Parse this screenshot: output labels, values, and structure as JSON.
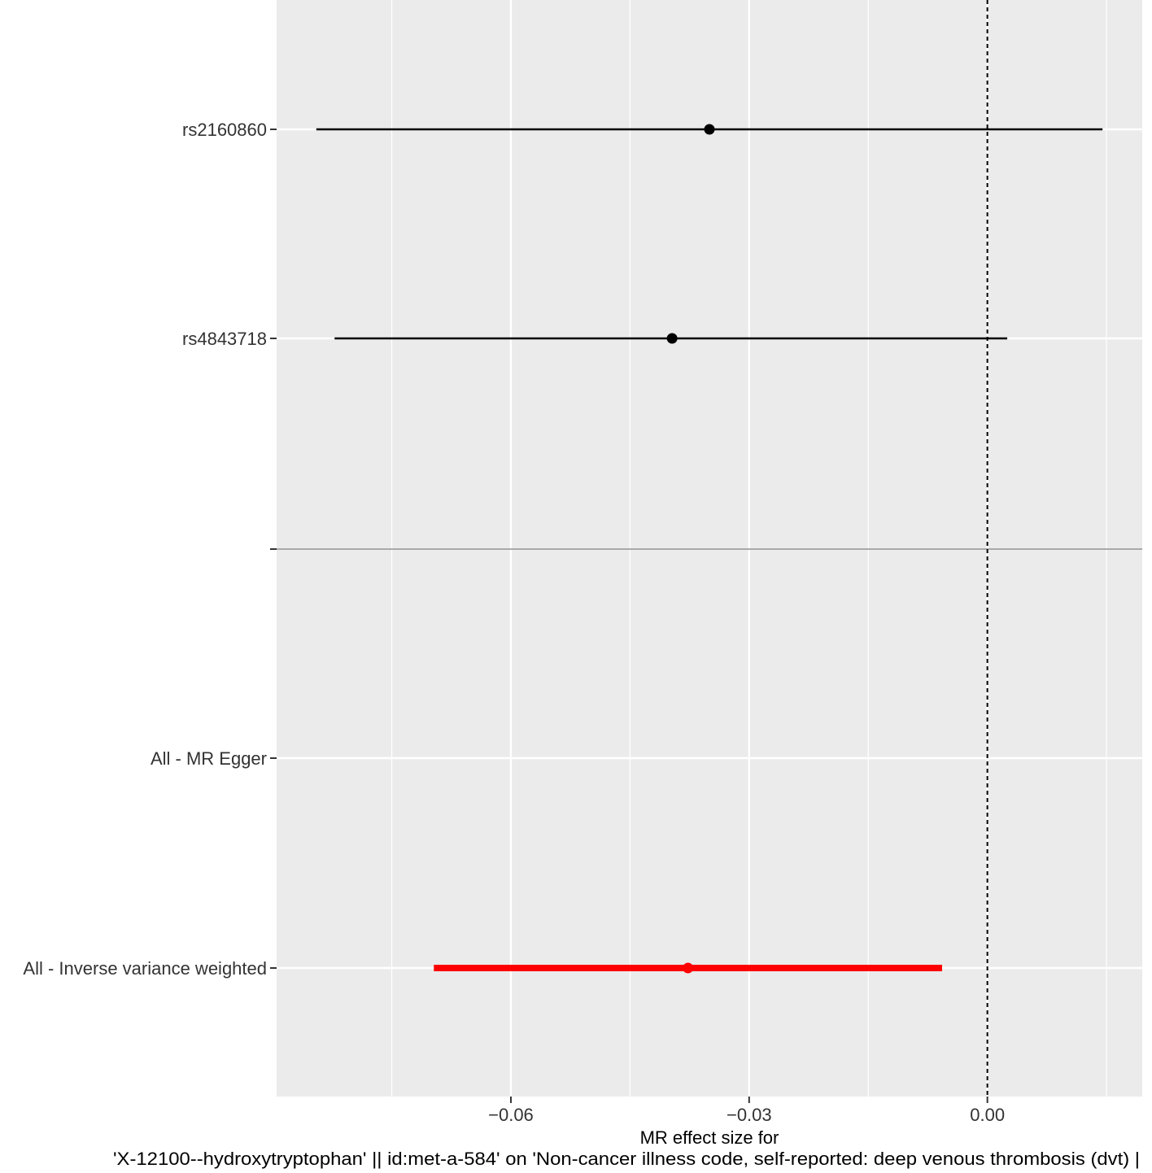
{
  "chart_data": {
    "type": "forest",
    "title": "",
    "xlabel_line1": "MR effect size for",
    "xlabel_line2": "'X-12100--hydroxytryptophan' || id:met-a-584' on 'Non-cancer illness code, self-reported: deep venous thrombosis (dvt) |",
    "ylabel": "",
    "xlim": [
      -0.0895,
      0.0195
    ],
    "x_ticks": [
      {
        "value": -0.06,
        "label": "-0.06"
      },
      {
        "value": -0.03,
        "label": "-0.03"
      },
      {
        "value": 0.0,
        "label": "0.00"
      }
    ],
    "reference_line": 0.0,
    "rows": [
      {
        "label": "rs2160860",
        "estimate": -0.035,
        "lower": -0.0845,
        "upper": 0.0145,
        "color": "#000000",
        "group": "snp"
      },
      {
        "label": "rs4843718",
        "estimate": -0.0397,
        "lower": -0.0822,
        "upper": 0.0025,
        "color": "#000000",
        "group": "snp"
      },
      {
        "label": "All - MR Egger",
        "estimate": null,
        "lower": null,
        "upper": null,
        "color": "#ff0000",
        "group": "summary"
      },
      {
        "label": "All - Inverse variance weighted",
        "estimate": -0.0377,
        "lower": -0.0697,
        "upper": -0.0057,
        "color": "#ff0000",
        "group": "summary"
      }
    ],
    "panel_background": "#ebebeb",
    "grid_color": "#ffffff",
    "separator_color": "#aaaaaa",
    "legend": "none"
  }
}
